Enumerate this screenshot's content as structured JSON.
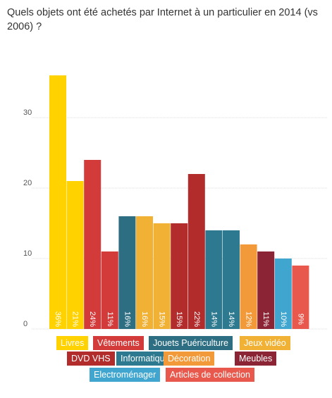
{
  "title": "Quels objets ont été achetés par Internet à un particulier en 2014 (vs 2006) ?",
  "chart_data": {
    "type": "bar",
    "title": "Quels objets ont été achetés par Internet à un particulier en 2014 (vs 2006) ?",
    "xlabel": "",
    "ylabel": "",
    "ylim": [
      0,
      40
    ],
    "yticks": [
      0,
      10,
      20,
      30
    ],
    "grid": true,
    "legend_position": "bottom",
    "bars": [
      {
        "category": "Livres",
        "year": "2006",
        "value": 36,
        "label": "36%",
        "color": "#FFD200"
      },
      {
        "category": "Livres",
        "year": "2014",
        "value": 21,
        "label": "21%",
        "color": "#FFD200"
      },
      {
        "category": "Vêtements",
        "year": "2006",
        "value": 24,
        "label": "24%",
        "color": "#D33A3A"
      },
      {
        "category": "Vêtements",
        "year": "2014",
        "value": 11,
        "label": "11%",
        "color": "#D33A3A"
      },
      {
        "category": "Jouets Puériculture",
        "year": "2006",
        "value": 16,
        "label": "16%",
        "color": "#2D6E82"
      },
      {
        "category": "Jeux vidéo",
        "year": "2006",
        "value": 16,
        "label": "16%",
        "color": "#F0B135"
      },
      {
        "category": "Jeux vidéo",
        "year": "2014",
        "value": 15,
        "label": "15%",
        "color": "#F0B135"
      },
      {
        "category": "DVD VHS",
        "year": "2006",
        "value": 15,
        "label": "15%",
        "color": "#B22C2C"
      },
      {
        "category": "DVD VHS",
        "year": "2014",
        "value": 22,
        "label": "22%",
        "color": "#B22C2C"
      },
      {
        "category": "Informatique",
        "year": "2006",
        "value": 14,
        "label": "14%",
        "color": "#2D7A90"
      },
      {
        "category": "Informatique",
        "year": "2014",
        "value": 14,
        "label": "14%",
        "color": "#2D7A90"
      },
      {
        "category": "Décoration",
        "year": "2006",
        "value": 12,
        "label": "12%",
        "color": "#F29A3A"
      },
      {
        "category": "Meubles",
        "year": "2006",
        "value": 11,
        "label": "11%",
        "color": "#8B2535"
      },
      {
        "category": "Electroménager",
        "year": "2006",
        "value": 10,
        "label": "10%",
        "color": "#41A6CF"
      },
      {
        "category": "Articles de collection",
        "year": "2006",
        "value": 9,
        "label": "9%",
        "color": "#E9584C"
      }
    ],
    "legend": [
      {
        "label": "Livres",
        "color": "#FFD200"
      },
      {
        "label": "Vêtements",
        "color": "#D33A3A"
      },
      {
        "label": "Jouets Puériculture",
        "color": "#2D6E82"
      },
      {
        "label": "Jeux vidéo",
        "color": "#F0B135"
      },
      {
        "label": "DVD VHS",
        "color": "#B22C2C"
      },
      {
        "label": "Informatique",
        "color": "#2D7A90"
      },
      {
        "label": "Décoration",
        "color": "#F29A3A"
      },
      {
        "label": "Meubles",
        "color": "#8B2535"
      },
      {
        "label": "Electroménager",
        "color": "#41A6CF"
      },
      {
        "label": "Articles de collection",
        "color": "#E9584C"
      }
    ]
  }
}
